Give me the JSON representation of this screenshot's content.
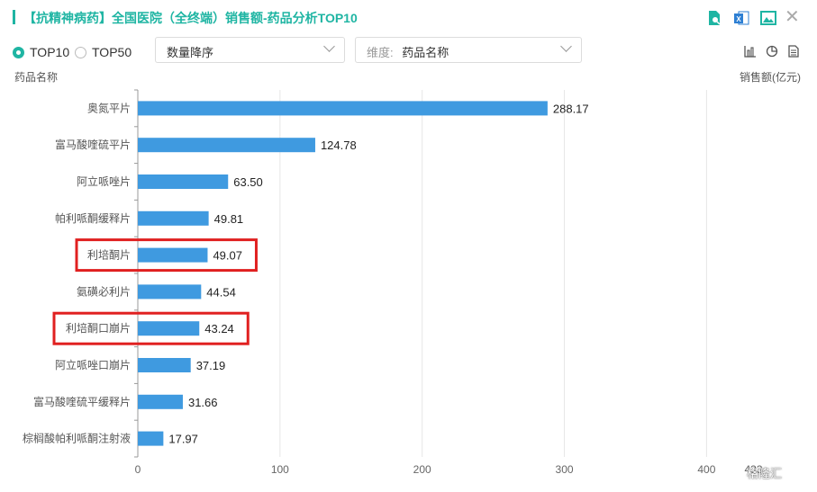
{
  "header": {
    "title": "【抗精神病药】全国医院（全终端）销售额-药品分析TOP10",
    "icons": [
      "file-search-icon",
      "excel-export-icon",
      "image-export-icon",
      "close-icon"
    ]
  },
  "controls": {
    "radio_top10": "TOP10",
    "radio_top50": "TOP50",
    "selected": "TOP10",
    "sort_select": "数量降序",
    "dimension_label": "维度:",
    "dimension_value": "药品名称",
    "view_icons": [
      "bar-chart-icon",
      "pie-chart-icon",
      "document-icon"
    ]
  },
  "colors": {
    "accent": "#1fb5a3",
    "bar": "#3f9ae0",
    "highlight": "#e02020"
  },
  "chart_data": {
    "type": "bar",
    "orientation": "horizontal",
    "ylabel": "药品名称",
    "xlabel": "销售额(亿元)",
    "categories": [
      "奥氮平片",
      "富马酸喹硫平片",
      "阿立哌唑片",
      "帕利哌酮缓释片",
      "利培酮片",
      "氨磺必利片",
      "利培酮口崩片",
      "阿立哌唑口崩片",
      "富马酸喹硫平缓释片",
      "棕榈酸帕利哌酮注射液"
    ],
    "values": [
      288.17,
      124.78,
      63.5,
      49.81,
      49.07,
      44.54,
      43.24,
      37.19,
      31.66,
      17.97
    ],
    "value_labels": [
      "288.17",
      "124.78",
      "63.50",
      "49.81",
      "49.07",
      "44.54",
      "43.24",
      "37.19",
      "31.66",
      "17.97"
    ],
    "xticks": [
      "0",
      "100",
      "200",
      "300",
      "400",
      "433"
    ],
    "xtick_values": [
      0,
      100,
      200,
      300,
      400,
      433
    ],
    "xlim": [
      0,
      433
    ],
    "grid": "vertical",
    "highlighted": [
      "利培酮片",
      "利培酮口崩片"
    ]
  },
  "watermark": "格隆汇"
}
